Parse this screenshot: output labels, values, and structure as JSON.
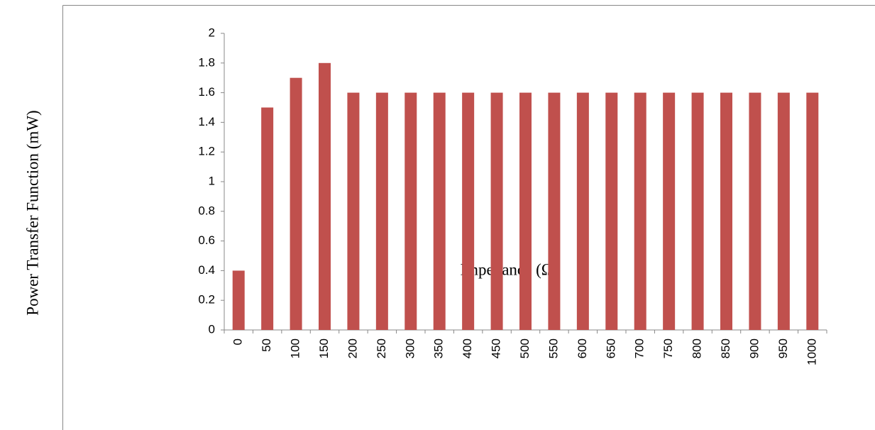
{
  "chart_data": {
    "type": "bar",
    "x_label": "Impedance (Ω)",
    "y_label": "Power Transfer Function (mW)",
    "categories": [
      "0",
      "50",
      "100",
      "150",
      "200",
      "250",
      "300",
      "350",
      "400",
      "450",
      "500",
      "550",
      "600",
      "650",
      "700",
      "750",
      "800",
      "850",
      "900",
      "950",
      "1000"
    ],
    "values": [
      0.4,
      1.5,
      1.7,
      1.8,
      1.6,
      1.6,
      1.6,
      1.6,
      1.6,
      1.6,
      1.6,
      1.6,
      1.6,
      1.6,
      1.6,
      1.6,
      1.6,
      1.6,
      1.6,
      1.6,
      1.6
    ],
    "color": "#c0504d",
    "ylim": [
      0,
      2
    ],
    "yticks": [
      0,
      0.2,
      0.4,
      0.6,
      0.8,
      1,
      1.2,
      1.4,
      1.6,
      1.8,
      2
    ],
    "grid": false
  }
}
